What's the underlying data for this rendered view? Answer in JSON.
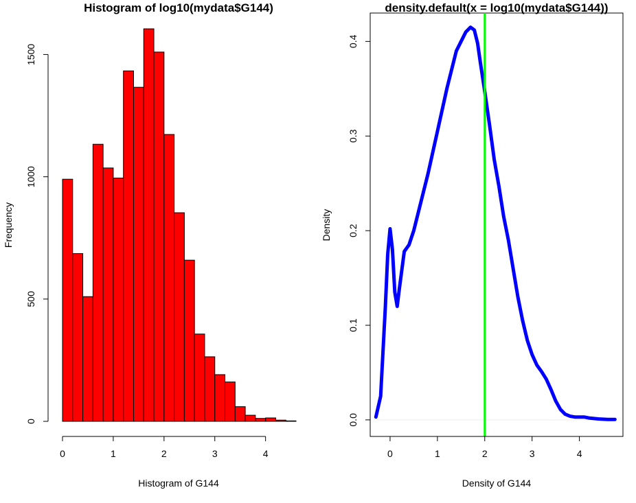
{
  "chart_data": [
    {
      "type": "bar",
      "title": "Histogram of log10(mydata$G144)",
      "xlabel": "Histogram of G144",
      "ylabel": "Frequency",
      "bin_width": 0.2,
      "bin_start": 0,
      "values": [
        990,
        686,
        510,
        1133,
        1036,
        995,
        1433,
        1366,
        1605,
        1510,
        1173,
        853,
        659,
        357,
        264,
        191,
        161,
        60,
        25,
        12,
        14,
        5,
        2
      ],
      "xticks": [
        0,
        1,
        2,
        3,
        4
      ],
      "yticks": [
        0,
        500,
        1000,
        1500
      ],
      "xlim": [
        0,
        4.6
      ],
      "ylim": [
        0,
        1605
      ],
      "color": "#ff0000",
      "edgecolor": "#000000",
      "grid": false
    },
    {
      "type": "line",
      "title": "density.default(x = log10(mydata$G144))",
      "xlabel": "Density of G144",
      "ylabel": "Density",
      "x": [
        -0.3,
        -0.2,
        -0.1,
        -0.05,
        0.0,
        0.05,
        0.1,
        0.15,
        0.2,
        0.3,
        0.4,
        0.5,
        0.6,
        0.8,
        1.0,
        1.2,
        1.4,
        1.6,
        1.7,
        1.78,
        1.85,
        1.9,
        2.0,
        2.1,
        2.2,
        2.3,
        2.4,
        2.5,
        2.6,
        2.7,
        2.8,
        2.9,
        3.0,
        3.1,
        3.2,
        3.3,
        3.4,
        3.5,
        3.6,
        3.7,
        3.8,
        3.9,
        4.0,
        4.1,
        4.2,
        4.4,
        4.6,
        4.75
      ],
      "y": [
        0.003,
        0.025,
        0.12,
        0.175,
        0.202,
        0.18,
        0.135,
        0.12,
        0.14,
        0.178,
        0.185,
        0.2,
        0.22,
        0.26,
        0.305,
        0.35,
        0.39,
        0.41,
        0.415,
        0.412,
        0.398,
        0.38,
        0.347,
        0.312,
        0.275,
        0.247,
        0.215,
        0.19,
        0.16,
        0.13,
        0.105,
        0.084,
        0.069,
        0.058,
        0.051,
        0.043,
        0.032,
        0.02,
        0.011,
        0.006,
        0.004,
        0.003,
        0.003,
        0.003,
        0.002,
        0.001,
        0.0005,
        0.0005
      ],
      "xticks": [
        0,
        1,
        2,
        3,
        4
      ],
      "yticks": [
        0.0,
        0.1,
        0.2,
        0.3,
        0.4
      ],
      "xlim": [
        -0.42,
        4.92
      ],
      "ylim": [
        0,
        0.43
      ],
      "line_color": "#0000ff",
      "vline_x": 2,
      "vline_color": "#00ff00",
      "box": true,
      "grid": false
    }
  ]
}
